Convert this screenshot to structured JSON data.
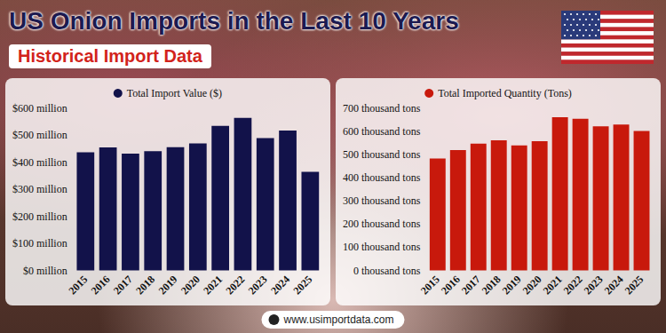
{
  "header": {
    "title": "US Onion Imports in the Last 10 Years",
    "subtitle": "Historical Import Data"
  },
  "footer": "www.usimportdata.com",
  "chart_data": [
    {
      "type": "bar",
      "categories": [
        "2015",
        "2016",
        "2017",
        "2018",
        "2019",
        "2020",
        "2021",
        "2022",
        "2023",
        "2024",
        "2025"
      ],
      "series": [
        {
          "name": "Total Import Value ($)",
          "color": "#12124a",
          "values": [
            437,
            455,
            432,
            441,
            456,
            470,
            535,
            565,
            490,
            518,
            365
          ]
        }
      ],
      "ylim": [
        0,
        600
      ],
      "yticks": [
        {
          "value": 0,
          "label": "$0 million"
        },
        {
          "value": 100,
          "label": "$100 million"
        },
        {
          "value": 200,
          "label": "$200 million"
        },
        {
          "value": 300,
          "label": "$300 million"
        },
        {
          "value": 400,
          "label": "$400 million"
        },
        {
          "value": 500,
          "label": "$500 million"
        },
        {
          "value": 600,
          "label": "$600 million"
        }
      ],
      "grid": false,
      "legend": "top"
    },
    {
      "type": "bar",
      "categories": [
        "2015",
        "2016",
        "2017",
        "2018",
        "2019",
        "2020",
        "2021",
        "2022",
        "2023",
        "2024",
        "2025"
      ],
      "series": [
        {
          "name": "Total Imported Quantity (Tons)",
          "color": "#c8190c",
          "values": [
            483,
            520,
            548,
            562,
            540,
            558,
            662,
            655,
            622,
            630,
            602
          ]
        }
      ],
      "ylim": [
        0,
        700
      ],
      "yticks": [
        {
          "value": 0,
          "label": "0 thousand tons"
        },
        {
          "value": 100,
          "label": "100 thousand tons"
        },
        {
          "value": 200,
          "label": "200 thousand tons"
        },
        {
          "value": 300,
          "label": "300 thousand tons"
        },
        {
          "value": 400,
          "label": "400 thousand tons"
        },
        {
          "value": 500,
          "label": "500 thousand tons"
        },
        {
          "value": 600,
          "label": "600 thousand tons"
        },
        {
          "value": 700,
          "label": "700 thousand tons"
        }
      ],
      "grid": false,
      "legend": "top"
    }
  ]
}
